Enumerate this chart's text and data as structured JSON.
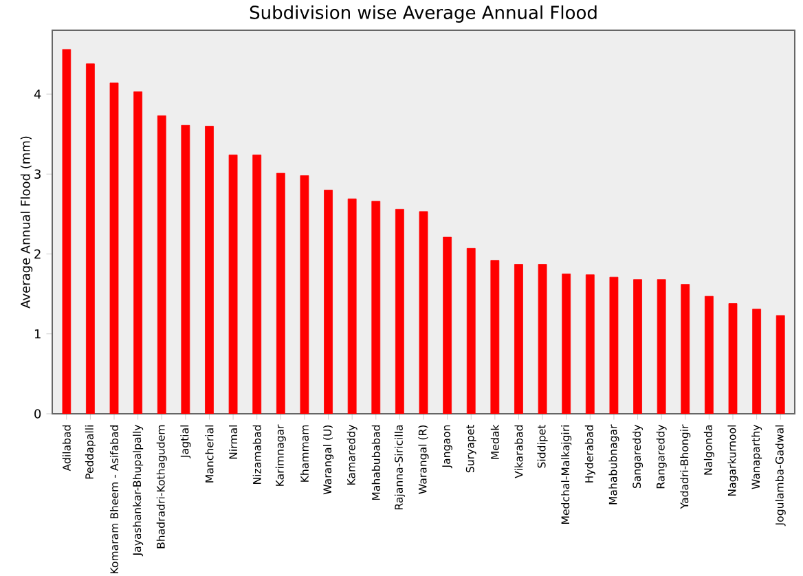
{
  "chart_data": {
    "type": "bar",
    "title": "Subdivision wise Average Annual Flood",
    "ylabel": "Average Annual Flood (mm)",
    "categories": [
      "Adilabad",
      "Peddapalli",
      "Komaram Bheem - Asifabad",
      "Jayashankar-Bhupalpally",
      "Bhadradri-Kothagudem",
      "Jagtial",
      "Mancherial",
      "Nirmal",
      "Nizamabad",
      "Karimnagar",
      "Khammam",
      "Warangal (U)",
      "Kamareddy",
      "Mahabubabad",
      "Rajanna-Siricilla",
      "Warangal (R)",
      "Jangaon",
      "Suryapet",
      "Medak",
      "Vikarabad",
      "Siddipet",
      "Medchal-Malkajgiri",
      "Hyderabad",
      "Mahabubnagar",
      "Sangareddy",
      "Rangareddy",
      "Yadadri-Bhongir",
      "Nalgonda",
      "Nagarkurnool",
      "Wanaparthy",
      "Jogulamba-Gadwal"
    ],
    "values": [
      4.56,
      4.38,
      4.14,
      4.03,
      3.73,
      3.61,
      3.6,
      3.24,
      3.24,
      3.01,
      2.98,
      2.8,
      2.69,
      2.66,
      2.56,
      2.53,
      2.21,
      2.07,
      1.92,
      1.87,
      1.87,
      1.75,
      1.74,
      1.71,
      1.68,
      1.68,
      1.62,
      1.47,
      1.38,
      1.31,
      1.23
    ],
    "color": "#ff0000",
    "ylim": [
      0,
      4.8
    ],
    "yticks": [
      0,
      1,
      2,
      3,
      4
    ],
    "grid": false
  }
}
